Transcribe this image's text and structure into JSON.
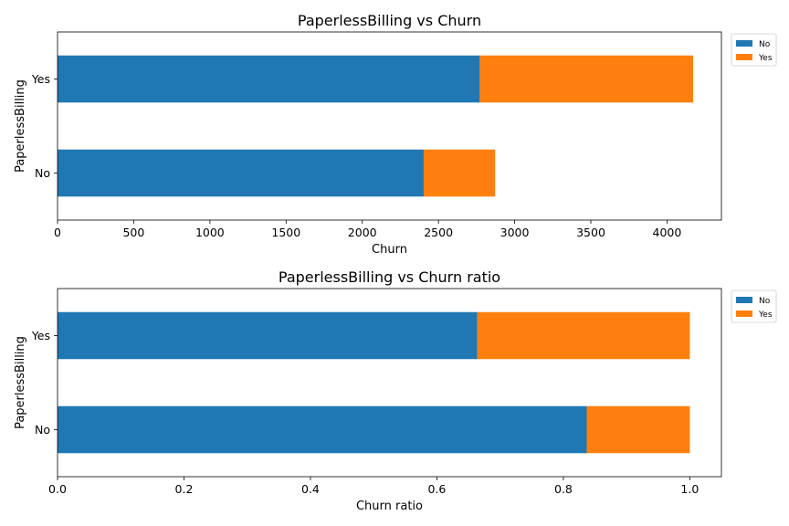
{
  "chart_data": [
    {
      "type": "bar",
      "orientation": "horizontal",
      "stacked": true,
      "title": "PaperlessBilling vs Churn",
      "xlabel": "Churn",
      "ylabel": "PaperlessBilling",
      "categories": [
        "No",
        "Yes"
      ],
      "series": [
        {
          "name": "No",
          "values": [
            2403,
            2771
          ],
          "color": "#1f77b4"
        },
        {
          "name": "Yes",
          "values": [
            469,
            1400
          ],
          "color": "#ff7f0e"
        }
      ],
      "xlim": [
        0,
        4357
      ],
      "xticks": [
        0,
        500,
        1000,
        1500,
        2000,
        2500,
        3000,
        3500,
        4000
      ],
      "xtick_labels": [
        "0",
        "500",
        "1000",
        "1500",
        "2000",
        "2500",
        "3000",
        "3500",
        "4000"
      ],
      "legend": "outside-top-right",
      "grid": false
    },
    {
      "type": "bar",
      "orientation": "horizontal",
      "stacked": true,
      "title": "PaperlessBilling vs Churn ratio",
      "xlabel": "Churn ratio",
      "ylabel": "PaperlessBilling",
      "categories": [
        "No",
        "Yes"
      ],
      "series": [
        {
          "name": "No",
          "values": [
            0.837,
            0.664
          ],
          "color": "#1f77b4"
        },
        {
          "name": "Yes",
          "values": [
            0.163,
            0.336
          ],
          "color": "#ff7f0e"
        }
      ],
      "xlim": [
        0,
        1.05
      ],
      "xticks": [
        0,
        0.2,
        0.4,
        0.6,
        0.8,
        1.0
      ],
      "xtick_labels": [
        "0.0",
        "0.2",
        "0.4",
        "0.6",
        "0.8",
        "1.0"
      ],
      "legend": "outside-top-right",
      "grid": false
    }
  ]
}
